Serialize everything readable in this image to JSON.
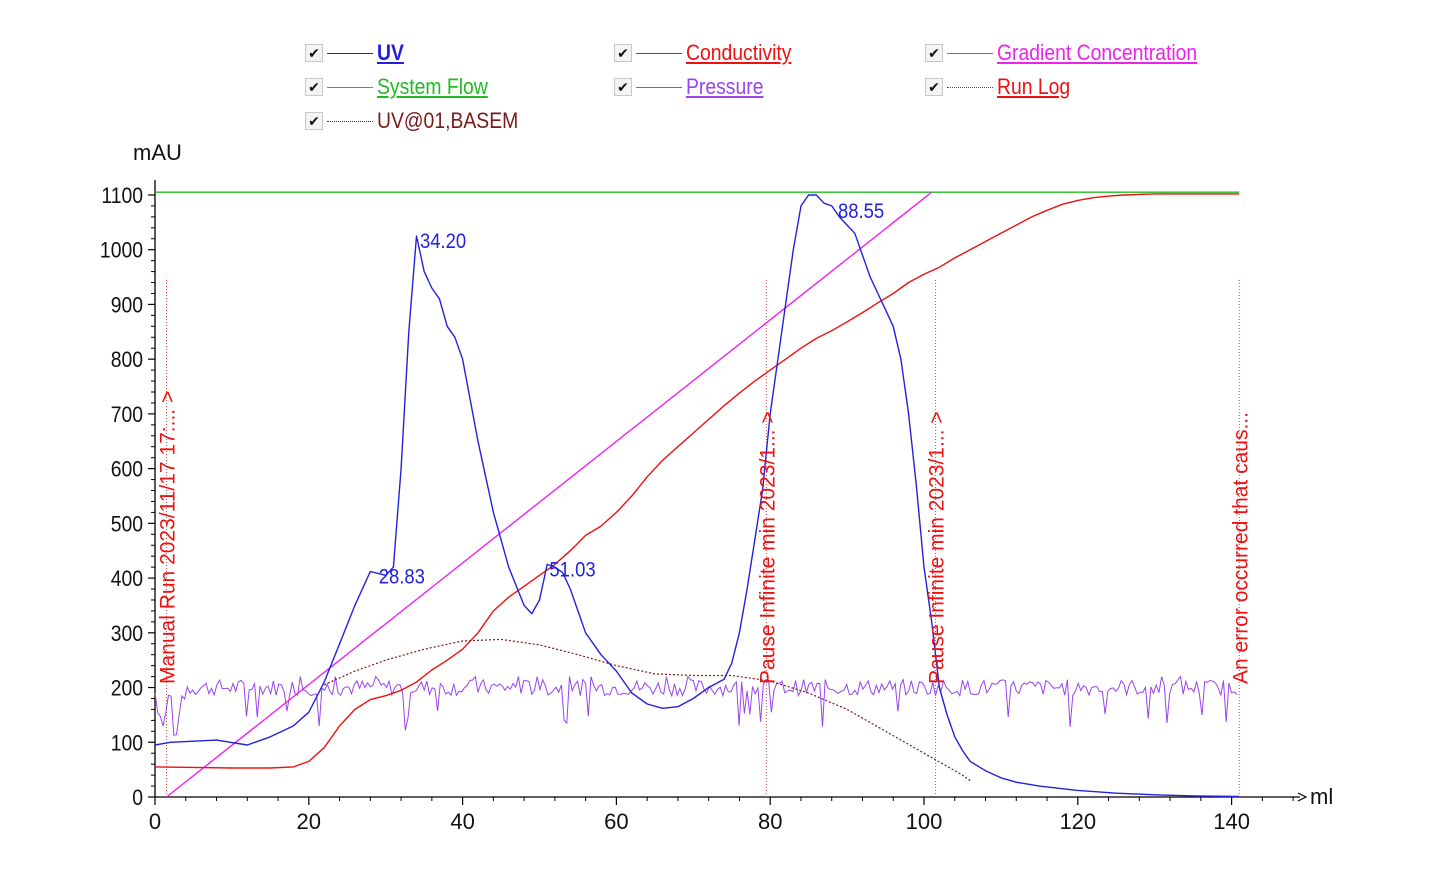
{
  "legend": {
    "items": [
      {
        "key": "uv",
        "label": "UV",
        "color": "#2222dd",
        "line": "solid",
        "bold": true,
        "checked": "✔"
      },
      {
        "key": "conductivity",
        "label": "Conductivity",
        "color": "#ee1111",
        "line": "solid",
        "bold": false,
        "checked": "✔"
      },
      {
        "key": "gradient",
        "label": "Gradient Concentration",
        "color": "#ee22ee",
        "line": "solid",
        "bold": false,
        "checked": "✔"
      },
      {
        "key": "flow",
        "label": "System Flow",
        "color": "#22bb22",
        "line": "solid",
        "bold": false,
        "checked": "✔"
      },
      {
        "key": "pressure",
        "label": "Pressure",
        "color": "#9944ee",
        "line": "solid",
        "bold": false,
        "checked": "✔"
      },
      {
        "key": "runlog",
        "label": "Run Log",
        "color": "#ee1111",
        "line": "dotted",
        "bold": false,
        "checked": "✔"
      },
      {
        "key": "basem",
        "label": "UV@01,BASEM",
        "color": "#7a1a1a",
        "line": "dotted",
        "bold": false,
        "checked": "✔"
      }
    ]
  },
  "chart_data": {
    "type": "line",
    "ylabel": "mAU",
    "xlabel": "ml",
    "ylim": [
      0,
      1100
    ],
    "xlim": [
      0,
      142
    ],
    "yticks": [
      0,
      100,
      200,
      300,
      400,
      500,
      600,
      700,
      800,
      900,
      1000,
      1100
    ],
    "xticks": [
      0,
      20,
      40,
      60,
      80,
      100,
      120,
      140
    ],
    "series": [
      {
        "name": "UV",
        "color": "#2222dd",
        "x": [
          0,
          2,
          5,
          8,
          12,
          15,
          18,
          20,
          22,
          24,
          26,
          28,
          30,
          31,
          32,
          33,
          34,
          35,
          36,
          37,
          38,
          39,
          40,
          42,
          44,
          46,
          48,
          49,
          50,
          51,
          52,
          53,
          54,
          56,
          58,
          60,
          62,
          64,
          66,
          68,
          70,
          72,
          74,
          75,
          76,
          77,
          78,
          79,
          80,
          81,
          82,
          83,
          84,
          85,
          86,
          87,
          88,
          89,
          90,
          91,
          92,
          93,
          94,
          95,
          96,
          97,
          98,
          99,
          100,
          101,
          102,
          103,
          104,
          105,
          106,
          108,
          110,
          112,
          115,
          120,
          125,
          130,
          135,
          141
        ],
        "y": [
          95,
          100,
          102,
          104,
          95,
          110,
          130,
          155,
          210,
          280,
          350,
          412,
          405,
          420,
          600,
          850,
          1025,
          960,
          930,
          910,
          860,
          840,
          800,
          650,
          520,
          420,
          350,
          335,
          360,
          425,
          420,
          410,
          380,
          300,
          260,
          230,
          190,
          170,
          162,
          165,
          180,
          200,
          215,
          245,
          300,
          380,
          470,
          560,
          700,
          800,
          900,
          1000,
          1080,
          1100,
          1100,
          1085,
          1080,
          1060,
          1045,
          1030,
          990,
          950,
          920,
          890,
          860,
          800,
          700,
          570,
          420,
          320,
          200,
          150,
          110,
          85,
          65,
          48,
          35,
          27,
          20,
          12,
          7,
          4,
          2,
          1
        ]
      },
      {
        "name": "Conductivity",
        "color": "#ee1111",
        "x": [
          0,
          5,
          10,
          15,
          18,
          20,
          22,
          24,
          26,
          28,
          30,
          32,
          34,
          36,
          38,
          40,
          42,
          44,
          46,
          48,
          50,
          52,
          54,
          56,
          58,
          60,
          62,
          64,
          66,
          68,
          70,
          72,
          74,
          76,
          78,
          80,
          82,
          84,
          86,
          88,
          90,
          92,
          94,
          96,
          98,
          100,
          102,
          104,
          106,
          108,
          110,
          112,
          114,
          116,
          118,
          120,
          122,
          124,
          126,
          128,
          130,
          135,
          141
        ],
        "y": [
          55,
          54,
          53,
          53,
          55,
          65,
          90,
          130,
          160,
          178,
          185,
          195,
          210,
          232,
          250,
          270,
          300,
          340,
          365,
          385,
          405,
          425,
          450,
          478,
          495,
          520,
          550,
          585,
          615,
          640,
          665,
          690,
          715,
          738,
          760,
          780,
          800,
          820,
          838,
          852,
          868,
          885,
          903,
          920,
          940,
          955,
          968,
          985,
          1000,
          1015,
          1030,
          1045,
          1060,
          1072,
          1083,
          1090,
          1095,
          1098,
          1100,
          1101,
          1102,
          1102,
          1102
        ]
      },
      {
        "name": "Gradient Concentration",
        "color": "#ee22ee",
        "x": [
          1.5,
          101
        ],
        "y": [
          0,
          1105
        ]
      },
      {
        "name": "System Flow",
        "color": "#22bb22",
        "x": [
          0,
          141
        ],
        "y": [
          1105,
          1105
        ]
      },
      {
        "name": "UV@01,BASEM",
        "color": "#7a1a1a",
        "x": [
          22,
          26,
          30,
          35,
          40,
          45,
          50,
          55,
          60,
          65,
          70,
          75,
          80,
          85,
          90,
          95,
          100,
          105,
          106
        ],
        "y": [
          205,
          230,
          250,
          270,
          285,
          288,
          278,
          260,
          240,
          225,
          222,
          222,
          212,
          190,
          160,
          120,
          80,
          40,
          30
        ]
      }
    ],
    "pressure": {
      "name": "Pressure",
      "color": "#9944ee",
      "x0": 0,
      "x1": 141,
      "base": 200
    },
    "peak_labels": [
      {
        "x": 28.83,
        "y": 412,
        "text": "28.83"
      },
      {
        "x": 34.2,
        "y": 1025,
        "text": "34.20"
      },
      {
        "x": 51.03,
        "y": 425,
        "text": "51.03"
      },
      {
        "x": 88.55,
        "y": 1080,
        "text": "88.55"
      }
    ],
    "run_log": [
      {
        "x": 1.5,
        "text": "Manual Run 2023/11/17 17:... >"
      },
      {
        "x": 79.5,
        "text": "Pause Infinite min 2023/1... >"
      },
      {
        "x": 101.5,
        "text": "Pause Infinite min 2023/1... >"
      },
      {
        "x": 141,
        "text": "An error occurred that caus..."
      }
    ]
  }
}
